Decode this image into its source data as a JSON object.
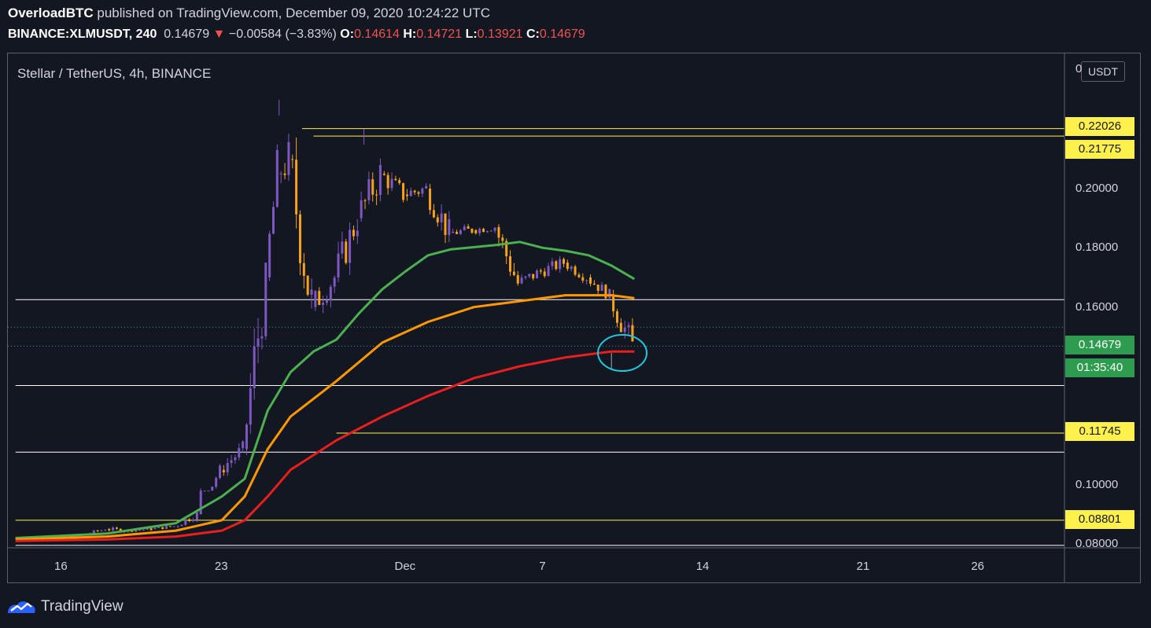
{
  "header": {
    "author": "OverloadBTC",
    "published": "published on TradingView.com, December 09, 2020 10:24:22 UTC",
    "symbol": "BINANCE:XLMUSDT, 240",
    "last": "0.14679",
    "change_arrow": "▼",
    "change": "−0.00584 (−3.83%)",
    "o_label": "O:",
    "o": "0.14614",
    "h_label": "H:",
    "h": "0.14721",
    "l_label": "L:",
    "l": "0.13921",
    "c_label": "C:",
    "c": "0.14679"
  },
  "pane_title": "Stellar / TetherUS, 4h, BINANCE",
  "currency_button": "USDT",
  "footer_brand": "TradingView",
  "badges": {
    "r1": "0.22026",
    "r2": "0.21775",
    "last_price": "0.14679",
    "countdown": "01:35:40",
    "s1": "0.11745",
    "s2": "0.08801"
  },
  "colors": {
    "background": "#131722",
    "up_candle": "#7e57c2",
    "down_candle": "#f7a21b",
    "ma_fast": "#4caf50",
    "ma_mid": "#ff9800",
    "ma_slow": "#e91e1e",
    "level_yellow": "#fff14d",
    "level_white": "#ffffff",
    "circle": "#26c6da"
  },
  "chart_data": {
    "type": "candlestick",
    "title": "Stellar / TetherUS, 4h, BINANCE",
    "y_axis_ticks": [
      "0",
      "0.22026",
      "0.21775",
      "0.20000",
      "0.18000",
      "0.16000",
      "0.14679",
      "0.11745",
      "0.10000",
      "0.08801",
      "0.08000"
    ],
    "x_axis_ticks": [
      "16",
      "23",
      "Dec",
      "7",
      "14",
      "21",
      "26"
    ],
    "ylim": [
      0.078,
      0.23
    ],
    "xlim": [
      14.0,
      60.0
    ],
    "x_unit": "day index (Nov 16 = 16, Dec 1 = 31)",
    "series": [
      {
        "name": "XLMUSDT",
        "ohlc_daily_approx": [
          [
            14.0,
            0.0815,
            0.083,
            0.0805,
            0.082
          ],
          [
            15.0,
            0.082,
            0.0835,
            0.081,
            0.0825
          ],
          [
            16.0,
            0.0825,
            0.084,
            0.0812,
            0.083
          ],
          [
            17.0,
            0.083,
            0.086,
            0.0825,
            0.085
          ],
          [
            18.0,
            0.085,
            0.087,
            0.083,
            0.0845
          ],
          [
            19.0,
            0.0845,
            0.086,
            0.0835,
            0.085
          ],
          [
            20.0,
            0.085,
            0.087,
            0.084,
            0.086
          ],
          [
            21.0,
            0.086,
            0.092,
            0.085,
            0.09
          ],
          [
            22.0,
            0.09,
            0.108,
            0.098,
            0.105
          ],
          [
            23.0,
            0.105,
            0.115,
            0.1,
            0.112
          ],
          [
            24.0,
            0.112,
            0.175,
            0.11,
            0.17
          ],
          [
            25.0,
            0.17,
            0.215,
            0.165,
            0.205
          ],
          [
            25.5,
            0.205,
            0.23,
            0.19,
            0.21
          ],
          [
            26.0,
            0.21,
            0.22,
            0.15,
            0.16
          ],
          [
            27.0,
            0.16,
            0.175,
            0.148,
            0.17
          ],
          [
            28.0,
            0.17,
            0.2,
            0.165,
            0.19
          ],
          [
            29.0,
            0.19,
            0.22,
            0.185,
            0.205
          ],
          [
            30.0,
            0.205,
            0.21,
            0.19,
            0.198
          ],
          [
            31.0,
            0.198,
            0.206,
            0.19,
            0.2
          ],
          [
            32.0,
            0.2,
            0.202,
            0.175,
            0.185
          ],
          [
            33.0,
            0.185,
            0.19,
            0.18,
            0.186
          ],
          [
            34.0,
            0.186,
            0.19,
            0.182,
            0.187
          ],
          [
            35.0,
            0.187,
            0.188,
            0.16,
            0.168
          ],
          [
            36.0,
            0.168,
            0.178,
            0.165,
            0.172
          ],
          [
            37.0,
            0.172,
            0.18,
            0.168,
            0.175
          ],
          [
            38.0,
            0.175,
            0.176,
            0.165,
            0.17
          ],
          [
            39.0,
            0.17,
            0.172,
            0.16,
            0.164
          ],
          [
            40.0,
            0.164,
            0.166,
            0.139,
            0.1468
          ]
        ]
      },
      {
        "name": "MA fast",
        "points": [
          [
            14,
            0.082
          ],
          [
            18,
            0.0835
          ],
          [
            21,
            0.087
          ],
          [
            23,
            0.096
          ],
          [
            24,
            0.102
          ],
          [
            25,
            0.125
          ],
          [
            26,
            0.138
          ],
          [
            27,
            0.145
          ],
          [
            28,
            0.149
          ],
          [
            29,
            0.158
          ],
          [
            30,
            0.166
          ],
          [
            31,
            0.172
          ],
          [
            32,
            0.1775
          ],
          [
            33,
            0.1795
          ],
          [
            35,
            0.181
          ],
          [
            36,
            0.182
          ],
          [
            37,
            0.18
          ],
          [
            38,
            0.179
          ],
          [
            39,
            0.1775
          ],
          [
            40,
            0.174
          ],
          [
            41,
            0.1695
          ]
        ]
      },
      {
        "name": "MA mid",
        "points": [
          [
            14,
            0.0815
          ],
          [
            18,
            0.0825
          ],
          [
            21,
            0.0845
          ],
          [
            23,
            0.088
          ],
          [
            24,
            0.096
          ],
          [
            25,
            0.112
          ],
          [
            26,
            0.123
          ],
          [
            28,
            0.135
          ],
          [
            30,
            0.148
          ],
          [
            32,
            0.155
          ],
          [
            34,
            0.16
          ],
          [
            36,
            0.162
          ],
          [
            38,
            0.164
          ],
          [
            40,
            0.164
          ],
          [
            41,
            0.163
          ]
        ]
      },
      {
        "name": "MA slow",
        "points": [
          [
            14,
            0.081
          ],
          [
            18,
            0.0815
          ],
          [
            21,
            0.0825
          ],
          [
            23,
            0.0845
          ],
          [
            24,
            0.088
          ],
          [
            25,
            0.096
          ],
          [
            26,
            0.105
          ],
          [
            28,
            0.115
          ],
          [
            30,
            0.123
          ],
          [
            32,
            0.13
          ],
          [
            34,
            0.136
          ],
          [
            36,
            0.14
          ],
          [
            38,
            0.143
          ],
          [
            40,
            0.145
          ],
          [
            41,
            0.145
          ]
        ]
      }
    ],
    "horizontal_levels": [
      {
        "value": 0.22026,
        "color": "yellow",
        "x_start": 26.5
      },
      {
        "value": 0.21775,
        "color": "yellow",
        "x_start": 27.0
      },
      {
        "value": 0.1625,
        "color": "white",
        "x_start": 14.0
      },
      {
        "value": 0.1335,
        "color": "white",
        "x_start": 14.0
      },
      {
        "value": 0.11745,
        "color": "yellow",
        "x_start": 28.0
      },
      {
        "value": 0.111,
        "color": "white",
        "x_start": 14.0
      },
      {
        "value": 0.08801,
        "color": "yellow",
        "x_start": 14.0
      },
      {
        "value": 0.0795,
        "color": "white",
        "x_start": 14.0
      }
    ],
    "annotation": {
      "type": "circle",
      "x": 40.2,
      "y": 0.1445
    },
    "grid": false,
    "legend": "none"
  }
}
